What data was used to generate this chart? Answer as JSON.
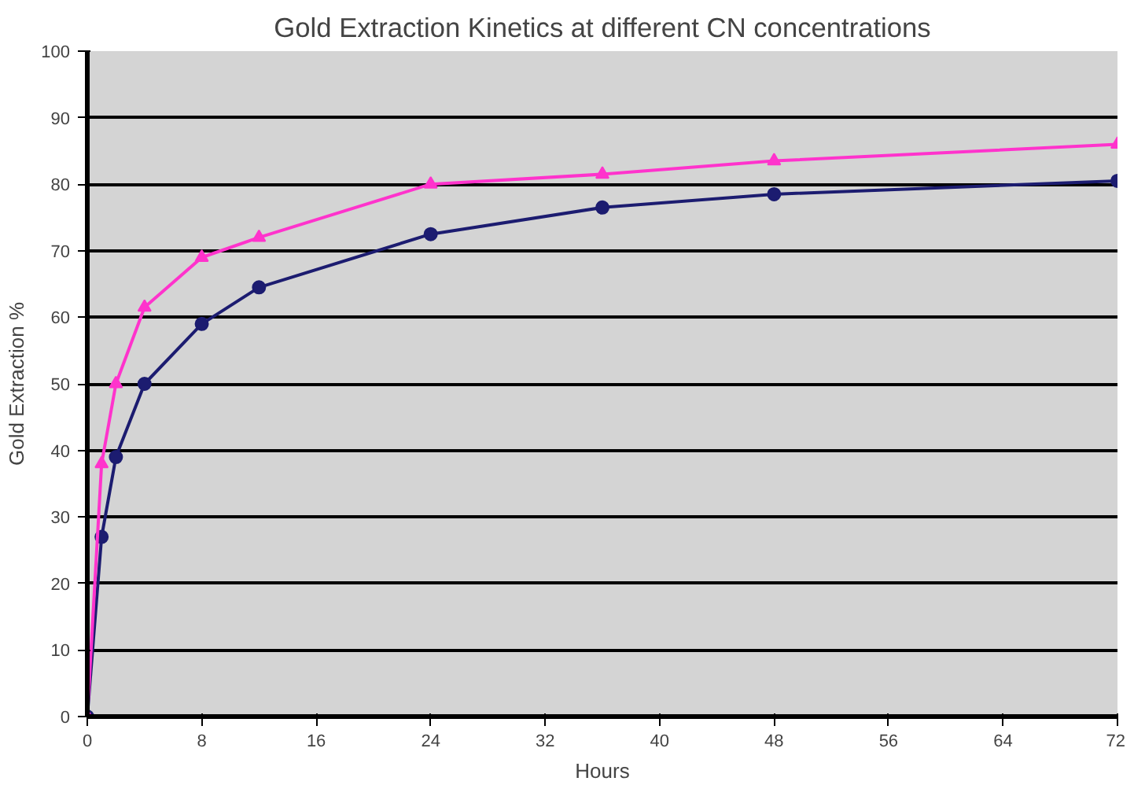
{
  "chart_data": {
    "type": "line",
    "title": "Gold Extraction Kinetics at different CN concentrations",
    "xlabel": "Hours",
    "ylabel": "Gold Extraction %",
    "x": [
      0,
      1,
      2,
      4,
      8,
      12,
      24,
      36,
      48,
      72
    ],
    "series": [
      {
        "color": "#1c1c70",
        "marker": "circle",
        "values": [
          0,
          27,
          39,
          50,
          59,
          64.5,
          72.5,
          76.5,
          78.5,
          80.5
        ]
      },
      {
        "color": "#ff33cc",
        "marker": "triangle",
        "values": [
          0,
          38,
          50,
          61.5,
          69,
          72,
          80,
          81.5,
          83.5,
          86
        ]
      }
    ],
    "xlim": [
      0,
      72
    ],
    "ylim": [
      0,
      100
    ],
    "xticks": [
      0,
      8,
      16,
      24,
      32,
      40,
      48,
      56,
      64,
      72
    ],
    "yticks": [
      0,
      10,
      20,
      30,
      40,
      50,
      60,
      70,
      80,
      90,
      100
    ],
    "grid": "y"
  }
}
